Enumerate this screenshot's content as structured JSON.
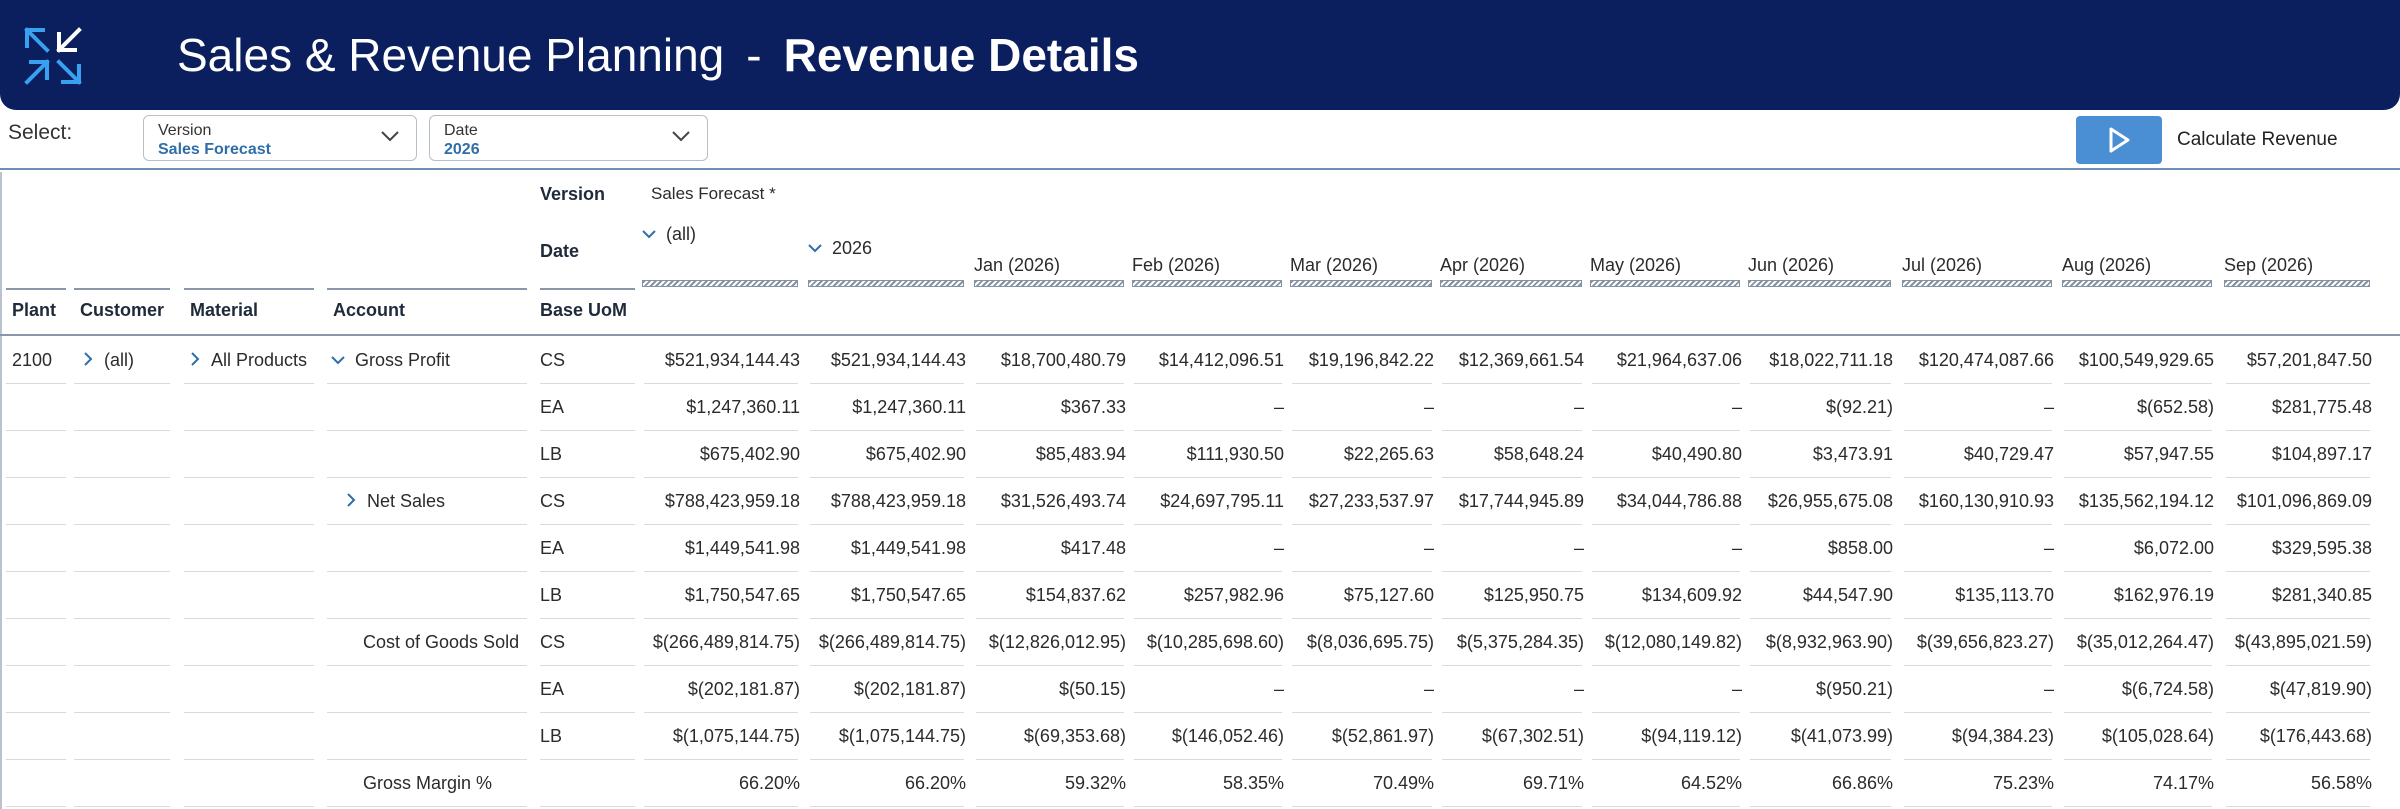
{
  "header": {
    "app_title": "Sales & Revenue Planning",
    "separator": "-",
    "page_title": "Revenue Details",
    "logo_icon": "arrows-logo-icon",
    "background": "#0b1f5e"
  },
  "toolbar": {
    "select_label": "Select:",
    "version": {
      "label": "Version",
      "value": "Sales Forecast"
    },
    "date": {
      "label": "Date",
      "value": "2026"
    },
    "calculate_label": "Calculate Revenue",
    "accent": "#4a8fd4"
  },
  "table": {
    "pivot_labels": {
      "version": "Version",
      "version_value": "Sales Forecast *",
      "date": "Date",
      "base_uom": "Base UoM"
    },
    "dim_headers": [
      "Plant",
      "Customer",
      "Material",
      "Account"
    ],
    "row_dims": {
      "plant": "2100",
      "customer": "(all)",
      "material": "All Products"
    },
    "columns": [
      "(all)",
      "2026",
      "Jan (2026)",
      "Feb (2026)",
      "Mar (2026)",
      "Apr (2026)",
      "May (2026)",
      "Jun (2026)",
      "Jul (2026)",
      "Aug (2026)",
      "Sep (2026)"
    ],
    "rows": [
      {
        "account": "Gross Profit",
        "uom": "CS",
        "values": [
          "$521,934,144.43",
          "$521,934,144.43",
          "$18,700,480.79",
          "$14,412,096.51",
          "$19,196,842.22",
          "$12,369,661.54",
          "$21,964,637.06",
          "$18,022,711.18",
          "$120,474,087.66",
          "$100,549,929.65",
          "$57,201,847.50"
        ]
      },
      {
        "account": "",
        "uom": "EA",
        "values": [
          "$1,247,360.11",
          "$1,247,360.11",
          "$367.33",
          "–",
          "–",
          "–",
          "–",
          "$(92.21)",
          "–",
          "$(652.58)",
          "$281,775.48"
        ]
      },
      {
        "account": "",
        "uom": "LB",
        "values": [
          "$675,402.90",
          "$675,402.90",
          "$85,483.94",
          "$111,930.50",
          "$22,265.63",
          "$58,648.24",
          "$40,490.80",
          "$3,473.91",
          "$40,729.47",
          "$57,947.55",
          "$104,897.17"
        ]
      },
      {
        "account": "Net Sales",
        "uom": "CS",
        "values": [
          "$788,423,959.18",
          "$788,423,959.18",
          "$31,526,493.74",
          "$24,697,795.11",
          "$27,233,537.97",
          "$17,744,945.89",
          "$34,044,786.88",
          "$26,955,675.08",
          "$160,130,910.93",
          "$135,562,194.12",
          "$101,096,869.09"
        ]
      },
      {
        "account": "",
        "uom": "EA",
        "values": [
          "$1,449,541.98",
          "$1,449,541.98",
          "$417.48",
          "–",
          "–",
          "–",
          "–",
          "$858.00",
          "–",
          "$6,072.00",
          "$329,595.38"
        ]
      },
      {
        "account": "",
        "uom": "LB",
        "values": [
          "$1,750,547.65",
          "$1,750,547.65",
          "$154,837.62",
          "$257,982.96",
          "$75,127.60",
          "$125,950.75",
          "$134,609.92",
          "$44,547.90",
          "$135,113.70",
          "$162,976.19",
          "$281,340.85"
        ]
      },
      {
        "account": "Cost of Goods Sold",
        "uom": "CS",
        "values": [
          "$(266,489,814.75)",
          "$(266,489,814.75)",
          "$(12,826,012.95)",
          "$(10,285,698.60)",
          "$(8,036,695.75)",
          "$(5,375,284.35)",
          "$(12,080,149.82)",
          "$(8,932,963.90)",
          "$(39,656,823.27)",
          "$(35,012,264.47)",
          "$(43,895,021.59)"
        ]
      },
      {
        "account": "",
        "uom": "EA",
        "values": [
          "$(202,181.87)",
          "$(202,181.87)",
          "$(50.15)",
          "–",
          "–",
          "–",
          "–",
          "$(950.21)",
          "–",
          "$(6,724.58)",
          "$(47,819.90)"
        ]
      },
      {
        "account": "",
        "uom": "LB",
        "values": [
          "$(1,075,144.75)",
          "$(1,075,144.75)",
          "$(69,353.68)",
          "$(146,052.46)",
          "$(52,861.97)",
          "$(67,302.51)",
          "$(94,119.12)",
          "$(41,073.99)",
          "$(94,384.23)",
          "$(105,028.64)",
          "$(176,443.68)"
        ]
      },
      {
        "account": "Gross Margin %",
        "uom": "",
        "values": [
          "66.20%",
          "66.20%",
          "59.32%",
          "58.35%",
          "70.49%",
          "69.71%",
          "64.52%",
          "66.86%",
          "75.23%",
          "74.17%",
          "56.58%"
        ]
      }
    ]
  }
}
